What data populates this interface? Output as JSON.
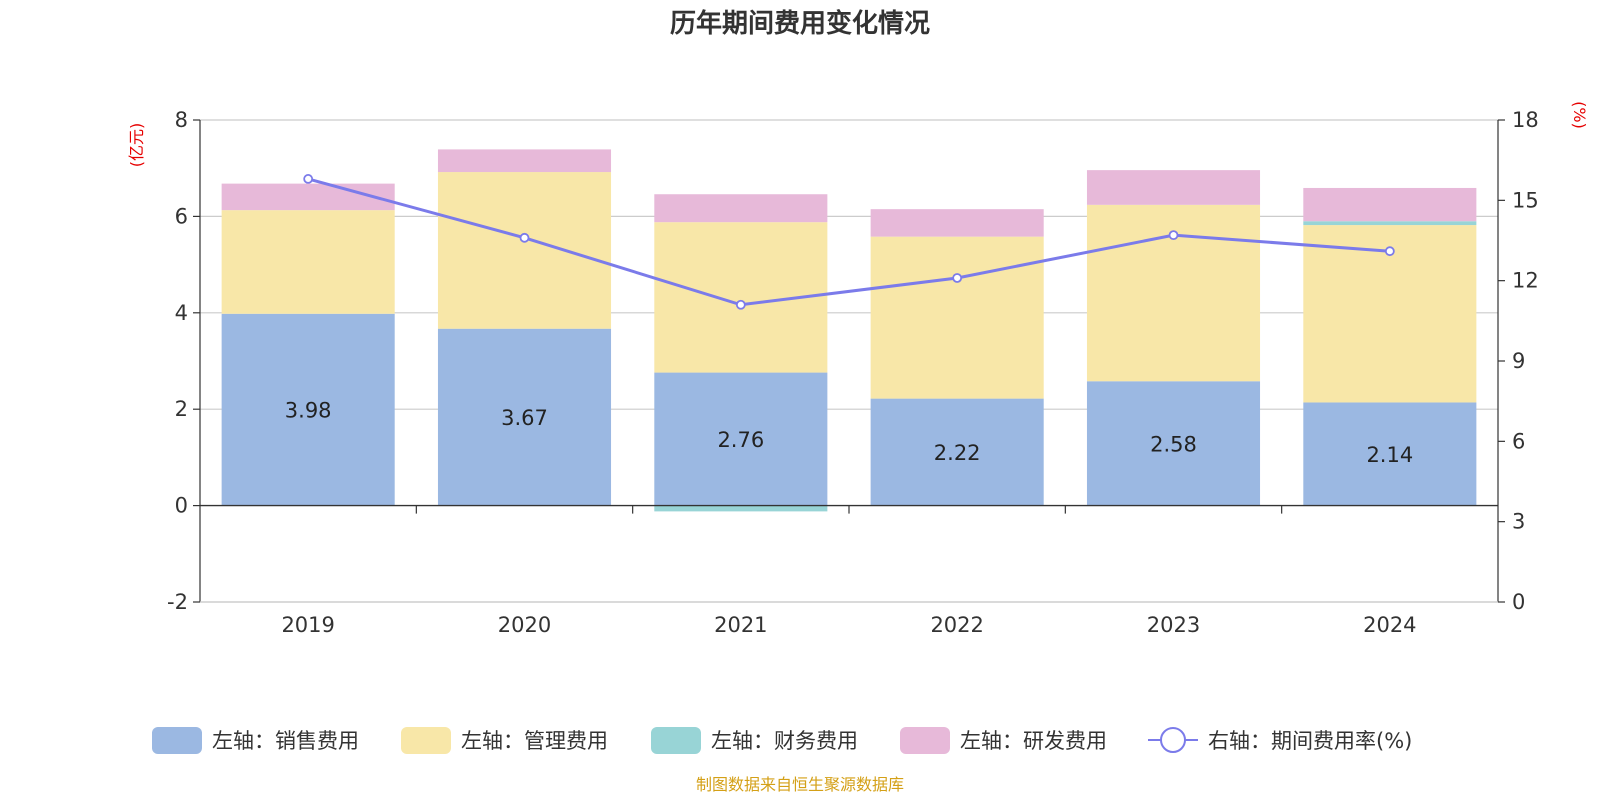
{
  "chart_data": {
    "type": "bar",
    "title": "历年期间费用变化情况",
    "categories": [
      "2019",
      "2020",
      "2021",
      "2022",
      "2023",
      "2024"
    ],
    "left_axis": {
      "unit": "(亿元)",
      "ylim": [
        -2,
        8
      ],
      "ticks": [
        -2,
        0,
        2,
        4,
        6,
        8
      ]
    },
    "right_axis": {
      "unit": "(%)",
      "ylim": [
        0,
        18
      ],
      "ticks": [
        0,
        3,
        6,
        9,
        12,
        15,
        18
      ]
    },
    "series": [
      {
        "name": "左轴：销售费用",
        "type": "bar",
        "axis": "left",
        "color": "#9bb8e2",
        "values": [
          3.98,
          3.67,
          2.76,
          2.22,
          2.58,
          2.14
        ],
        "labels": [
          "3.98",
          "3.67",
          "2.76",
          "2.22",
          "2.58",
          "2.14"
        ]
      },
      {
        "name": "左轴：管理费用",
        "type": "bar",
        "axis": "left",
        "color": "#f8e7a8",
        "values": [
          2.15,
          3.25,
          3.12,
          3.36,
          3.66,
          3.68
        ]
      },
      {
        "name": "左轴：财务费用",
        "type": "bar",
        "axis": "left",
        "color": "#98d4d6",
        "values": [
          0.0,
          0.0,
          -0.12,
          0.0,
          0.0,
          0.08
        ]
      },
      {
        "name": "左轴：研发费用",
        "type": "bar",
        "axis": "left",
        "color": "#e7b9d9",
        "values": [
          0.55,
          0.47,
          0.58,
          0.57,
          0.72,
          0.69
        ]
      },
      {
        "name": "右轴：期间费用率(%)",
        "type": "line",
        "axis": "right",
        "color": "#7b7bea",
        "values": [
          15.8,
          13.6,
          11.1,
          12.1,
          13.7,
          13.1
        ]
      }
    ],
    "legend_position": "bottom",
    "grid": true
  },
  "source_note": "制图数据来自恒生聚源数据库",
  "source_color": "#d4a017"
}
